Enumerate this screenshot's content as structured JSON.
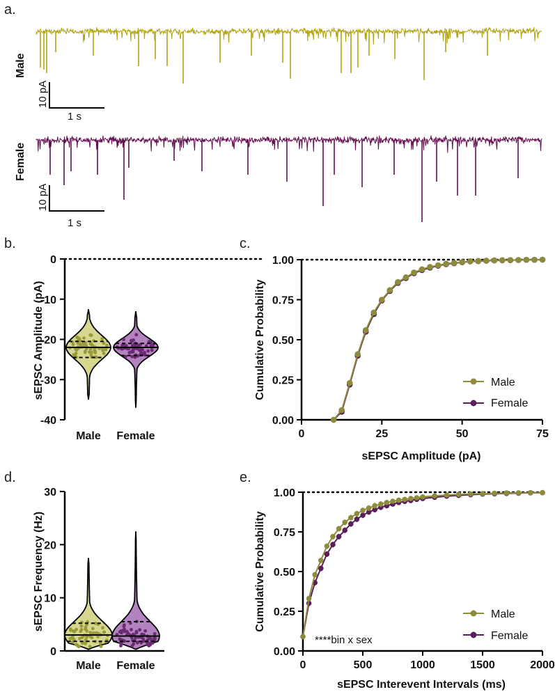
{
  "colors": {
    "male_trace": "#b2a312",
    "female_trace": "#620f4e",
    "male_line": "#8c8c3c",
    "female_line": "#5a1e5a",
    "male_fill": "#d6d88f",
    "female_fill": "#b283bf",
    "male_dot": "#9a9a3a",
    "female_dot": "#6b2a73",
    "axis": "#000000"
  },
  "panel_a": {
    "letter": "a.",
    "male_label": "Male",
    "female_label": "Female",
    "scale_y_label": "10 pA",
    "scale_x_label": "1 s"
  },
  "chart_data": [
    {
      "id": "b",
      "letter": "b.",
      "type": "violin",
      "ylabel": "sEPSC Amplitude (pA)",
      "xlabel": "",
      "ylim": [
        -40,
        0
      ],
      "yticks": [
        0,
        -10,
        -20,
        -30,
        -40
      ],
      "ytick_labels": [
        "0",
        "-10",
        "-20",
        "-30",
        "-40"
      ],
      "reference_line": 0,
      "categories": [
        "Male",
        "Female"
      ],
      "groups": [
        {
          "name": "Male",
          "min": -35,
          "q1": -24.5,
          "median": -22,
          "q3": -20.5,
          "max": -12.5,
          "n_points": 60
        },
        {
          "name": "Female",
          "min": -37,
          "q1": -24,
          "median": -22,
          "q3": -21,
          "max": -13,
          "n_points": 60
        }
      ]
    },
    {
      "id": "c",
      "letter": "c.",
      "type": "line",
      "ylabel": "Cumulative Probability",
      "xlabel": "sEPSC Amplitude (pA)",
      "xlim": [
        0,
        75
      ],
      "ylim": [
        0,
        1
      ],
      "xticks": [
        0,
        25,
        50,
        75
      ],
      "xtick_labels": [
        "0",
        "25",
        "50",
        "75"
      ],
      "yticks": [
        0,
        0.25,
        0.5,
        0.75,
        1
      ],
      "ytick_labels": [
        "0.00",
        "0.25",
        "0.50",
        "0.75",
        "1.00"
      ],
      "reference_line": 1,
      "legend": [
        "Male",
        "Female"
      ],
      "legend_position": "bottom-right",
      "series": [
        {
          "name": "Male",
          "x": [
            10,
            12.5,
            15,
            17.5,
            20,
            22.5,
            25,
            27.5,
            30,
            32.5,
            35,
            37.5,
            40,
            42.5,
            45,
            47.5,
            50,
            52.5,
            55,
            57.5,
            60,
            62.5,
            65,
            67.5,
            70,
            72.5,
            75
          ],
          "y": [
            0,
            0.06,
            0.23,
            0.41,
            0.56,
            0.67,
            0.75,
            0.81,
            0.86,
            0.89,
            0.92,
            0.94,
            0.955,
            0.965,
            0.975,
            0.98,
            0.985,
            0.99,
            0.992,
            0.994,
            0.996,
            0.997,
            0.998,
            0.998,
            0.999,
            0.999,
            1.0
          ]
        },
        {
          "name": "Female",
          "x": [
            10,
            12.5,
            15,
            17.5,
            20,
            22.5,
            25,
            27.5,
            30,
            32.5,
            35,
            37.5,
            40,
            42.5,
            45,
            47.5,
            50,
            52.5,
            55,
            57.5,
            60,
            62.5,
            65,
            67.5,
            70,
            72.5,
            75
          ],
          "y": [
            0,
            0.05,
            0.22,
            0.4,
            0.55,
            0.66,
            0.745,
            0.805,
            0.855,
            0.885,
            0.915,
            0.935,
            0.95,
            0.962,
            0.972,
            0.978,
            0.984,
            0.989,
            0.991,
            0.993,
            0.995,
            0.996,
            0.997,
            0.998,
            0.999,
            0.999,
            1.0
          ]
        }
      ]
    },
    {
      "id": "d",
      "letter": "d.",
      "type": "violin",
      "ylabel": "sEPSC  Frequency (Hz)",
      "xlabel": "",
      "ylim": [
        0,
        30
      ],
      "yticks": [
        0,
        10,
        20,
        30
      ],
      "ytick_labels": [
        "0",
        "10",
        "20",
        "30"
      ],
      "categories": [
        "Male",
        "Female"
      ],
      "groups": [
        {
          "name": "Male",
          "min": 0.3,
          "q1": 1.8,
          "median": 3,
          "q3": 5.2,
          "max": 17.5,
          "n_points": 60
        },
        {
          "name": "Female",
          "min": 0.3,
          "q1": 1.8,
          "median": 2.8,
          "q3": 5.5,
          "max": 22.5,
          "n_points": 70
        }
      ]
    },
    {
      "id": "e",
      "letter": "e.",
      "type": "line",
      "ylabel": "Cumulative Probability",
      "xlabel": "sEPSC Interevent Intervals (ms)",
      "xlim": [
        0,
        2000
      ],
      "ylim": [
        0,
        1
      ],
      "xticks": [
        0,
        500,
        1000,
        1500,
        2000
      ],
      "xtick_labels": [
        "0",
        "500",
        "1000",
        "1500",
        "2000"
      ],
      "yticks": [
        0,
        0.25,
        0.5,
        0.75,
        1
      ],
      "ytick_labels": [
        "0.00",
        "0.25",
        "0.50",
        "0.75",
        "1.00"
      ],
      "reference_line": 1,
      "legend": [
        "Male",
        "Female"
      ],
      "legend_position": "bottom-right",
      "annotation": "****bin x sex",
      "series": [
        {
          "name": "Male",
          "x": [
            0,
            50,
            100,
            150,
            200,
            250,
            300,
            350,
            400,
            450,
            500,
            550,
            600,
            650,
            700,
            750,
            800,
            850,
            900,
            950,
            1000,
            1100,
            1200,
            1300,
            1400,
            1500,
            1600,
            1700,
            1800,
            1900,
            2000
          ],
          "y": [
            0.09,
            0.33,
            0.48,
            0.57,
            0.66,
            0.72,
            0.77,
            0.81,
            0.84,
            0.865,
            0.885,
            0.9,
            0.915,
            0.925,
            0.935,
            0.943,
            0.95,
            0.955,
            0.96,
            0.965,
            0.97,
            0.977,
            0.982,
            0.986,
            0.989,
            0.991,
            0.993,
            0.995,
            0.996,
            0.997,
            0.998
          ]
        },
        {
          "name": "Female",
          "x": [
            0,
            50,
            100,
            150,
            200,
            250,
            300,
            350,
            400,
            450,
            500,
            550,
            600,
            650,
            700,
            750,
            800,
            850,
            900,
            950,
            1000,
            1100,
            1200,
            1300,
            1400,
            1500,
            1600,
            1700,
            1800,
            1900,
            2000
          ],
          "y": [
            0.09,
            0.3,
            0.43,
            0.52,
            0.61,
            0.67,
            0.72,
            0.76,
            0.8,
            0.83,
            0.855,
            0.875,
            0.89,
            0.905,
            0.915,
            0.925,
            0.935,
            0.942,
            0.948,
            0.955,
            0.96,
            0.968,
            0.975,
            0.98,
            0.984,
            0.988,
            0.99,
            0.992,
            0.994,
            0.996,
            0.997
          ]
        }
      ]
    }
  ]
}
